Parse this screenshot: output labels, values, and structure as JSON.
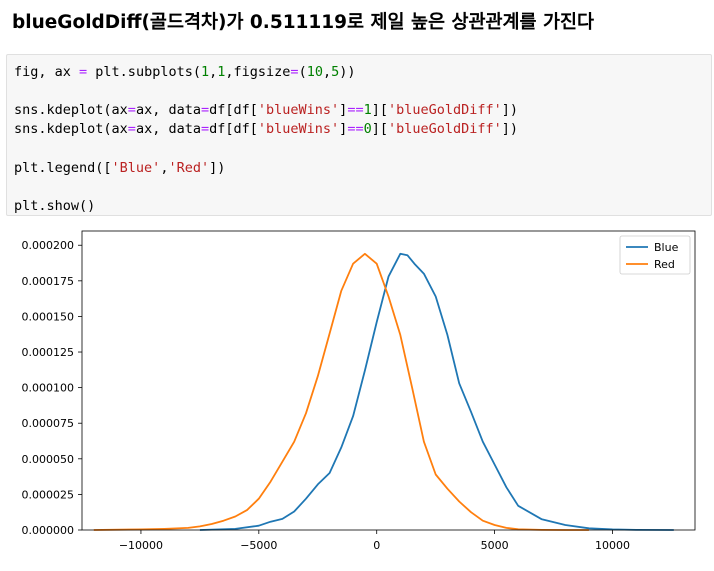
{
  "heading": "blueGoldDiff(골드격차)가 0.511119로 제일 높은 상관관계를 가진다",
  "code": {
    "lines": [
      [
        {
          "t": "fig, ax ",
          "c": ""
        },
        {
          "t": "=",
          "c": "op"
        },
        {
          "t": " plt.subplots(",
          "c": ""
        },
        {
          "t": "1",
          "c": "num"
        },
        {
          "t": ",",
          "c": ""
        },
        {
          "t": "1",
          "c": "num"
        },
        {
          "t": ",figsize",
          "c": ""
        },
        {
          "t": "=",
          "c": "op"
        },
        {
          "t": "(",
          "c": ""
        },
        {
          "t": "10",
          "c": "num"
        },
        {
          "t": ",",
          "c": ""
        },
        {
          "t": "5",
          "c": "num"
        },
        {
          "t": "))",
          "c": ""
        }
      ],
      [],
      [
        {
          "t": "sns.kdeplot(ax",
          "c": ""
        },
        {
          "t": "=",
          "c": "op"
        },
        {
          "t": "ax, data",
          "c": ""
        },
        {
          "t": "=",
          "c": "op"
        },
        {
          "t": "df[df[",
          "c": ""
        },
        {
          "t": "'blueWins'",
          "c": "str"
        },
        {
          "t": "]",
          "c": ""
        },
        {
          "t": "==",
          "c": "op"
        },
        {
          "t": "1",
          "c": "num"
        },
        {
          "t": "][",
          "c": ""
        },
        {
          "t": "'blueGoldDiff'",
          "c": "str"
        },
        {
          "t": "])",
          "c": ""
        }
      ],
      [
        {
          "t": "sns.kdeplot(ax",
          "c": ""
        },
        {
          "t": "=",
          "c": "op"
        },
        {
          "t": "ax, data",
          "c": ""
        },
        {
          "t": "=",
          "c": "op"
        },
        {
          "t": "df[df[",
          "c": ""
        },
        {
          "t": "'blueWins'",
          "c": "str"
        },
        {
          "t": "]",
          "c": ""
        },
        {
          "t": "==",
          "c": "op"
        },
        {
          "t": "0",
          "c": "num"
        },
        {
          "t": "][",
          "c": ""
        },
        {
          "t": "'blueGoldDiff'",
          "c": "str"
        },
        {
          "t": "])",
          "c": ""
        }
      ],
      [],
      [
        {
          "t": "plt.legend([",
          "c": ""
        },
        {
          "t": "'Blue'",
          "c": "str"
        },
        {
          "t": ",",
          "c": ""
        },
        {
          "t": "'Red'",
          "c": "str"
        },
        {
          "t": "])",
          "c": ""
        }
      ],
      [],
      [
        {
          "t": "plt.show()",
          "c": ""
        }
      ]
    ]
  },
  "chart_data": {
    "type": "line",
    "title": "",
    "xlabel": "",
    "ylabel": "",
    "xlim": [
      -12500,
      13500
    ],
    "ylim": [
      0,
      0.00021
    ],
    "xticks": [
      -10000,
      -5000,
      0,
      5000,
      10000
    ],
    "xtick_labels": [
      "−10000",
      "−5000",
      "0",
      "5000",
      "10000"
    ],
    "yticks": [
      0,
      2.5e-05,
      5e-05,
      7.5e-05,
      0.0001,
      0.000125,
      0.00015,
      0.000175,
      0.0002
    ],
    "ytick_labels": [
      "0.000000",
      "0.000025",
      "0.000050",
      "0.000075",
      "0.000100",
      "0.000125",
      "0.000150",
      "0.000175",
      "0.000200"
    ],
    "legend_position": "top-right",
    "grid": false,
    "series": [
      {
        "name": "Blue",
        "color": "#1f77b4",
        "x": [
          -7500,
          -6000,
          -5000,
          -4500,
          -4000,
          -3500,
          -3000,
          -2500,
          -2000,
          -1500,
          -1000,
          -500,
          0,
          500,
          1000,
          1300,
          1600,
          2000,
          2500,
          3000,
          3500,
          4000,
          4500,
          5000,
          5500,
          6000,
          7000,
          8000,
          9000,
          10000,
          11000,
          12600
        ],
        "y": [
          0,
          8e-07,
          3e-06,
          5.8e-06,
          7.8e-06,
          1.3e-05,
          2.2e-05,
          3.2e-05,
          4e-05,
          5.8e-05,
          8e-05,
          0.000112,
          0.000146,
          0.000178,
          0.000194,
          0.000193,
          0.000187,
          0.00018,
          0.000164,
          0.000137,
          0.000103,
          8.3e-05,
          6.2e-05,
          4.6e-05,
          3e-05,
          1.7e-05,
          7.5e-06,
          3.5e-06,
          1.2e-06,
          4e-07,
          1e-07,
          0
        ]
      },
      {
        "name": "Red",
        "color": "#ff7f0e",
        "x": [
          -12000,
          -10000,
          -9000,
          -8000,
          -7500,
          -7000,
          -6500,
          -6000,
          -5500,
          -5000,
          -4500,
          -4000,
          -3500,
          -3000,
          -2500,
          -2000,
          -1500,
          -1000,
          -500,
          0,
          500,
          1000,
          1500,
          2000,
          2500,
          3000,
          3500,
          4000,
          4500,
          5000,
          5500,
          6000,
          7000,
          8000,
          9000
        ],
        "y": [
          0,
          4e-07,
          8e-07,
          1.5e-06,
          2.5e-06,
          4.2e-06,
          6.5e-06,
          9.5e-06,
          1.4e-05,
          2.2e-05,
          3.4e-05,
          4.8e-05,
          6.2e-05,
          8.2e-05,
          0.000108,
          0.000138,
          0.000168,
          0.000187,
          0.000194,
          0.000187,
          0.000164,
          0.000137,
          0.0001,
          6.2e-05,
          3.9e-05,
          2.9e-05,
          2e-05,
          1.25e-05,
          6.5e-06,
          3.5e-06,
          1.5e-06,
          5e-07,
          1e-07,
          0,
          0
        ]
      }
    ]
  }
}
